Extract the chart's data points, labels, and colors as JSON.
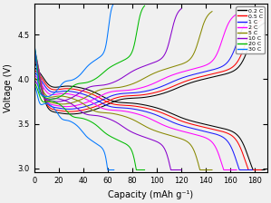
{
  "title": "",
  "xlabel": "Capacity (mAh g⁻¹)",
  "ylabel": "Voltage (V)",
  "xlim": [
    0,
    190
  ],
  "ylim": [
    2.95,
    4.85
  ],
  "xticks": [
    0,
    20,
    40,
    60,
    80,
    100,
    120,
    140,
    160,
    180
  ],
  "yticks": [
    3.0,
    3.5,
    4.0,
    4.5
  ],
  "rates": [
    "0.2 C",
    "0.5 C",
    "1 C",
    "2 C",
    "5 C",
    "10 C",
    "20 C",
    "30 C"
  ],
  "colors": [
    "#000000",
    "#ff0000",
    "#1a1aff",
    "#ff00ff",
    "#888800",
    "#8800cc",
    "#00bb00",
    "#0077ff"
  ],
  "capacities": [
    188,
    185,
    178,
    165,
    145,
    120,
    90,
    65
  ],
  "background_color": "#f0f0f0"
}
